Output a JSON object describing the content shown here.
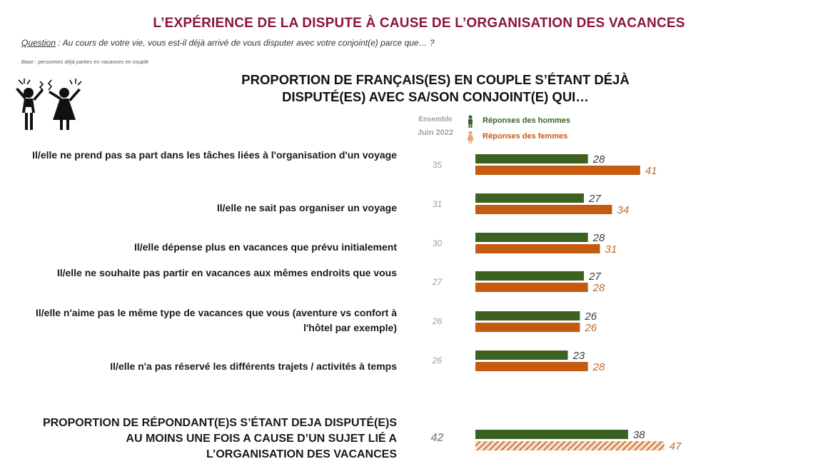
{
  "header": {
    "title": "L’EXPÉRIENCE DE LA DISPUTE À CAUSE DE L’ORGANISATION DES VACANCES",
    "question_label": "Question",
    "question_text": " : Au cours de votre vie, vous est-il déjà arrivé de vous disputer avec votre conjoint(e) parce que… ?",
    "base": "Base : personnes déjà parties en vacances en couple"
  },
  "chart_data": {
    "type": "bar",
    "orientation": "horizontal",
    "title_line1": "PROPORTION DE FRANÇAIS(ES) EN COUPLE S’ÉTANT DÉJÀ",
    "title_line2": "DISPUTÉ(ES) AVEC SA/SON CONJOINT(E) QUI…",
    "ensemble_label": "Ensemble",
    "ensemble_sublabel": "Juin 2022",
    "categories": [
      "Il/elle ne prend pas sa part dans les tâches liées à l'organisation d'un voyage",
      "Il/elle ne sait pas organiser un voyage",
      "Il/elle dépense plus en vacances que prévu initialement",
      "Il/elle ne souhaite pas partir en vacances aux mêmes endroits que vous",
      "Il/elle n'aime pas le même type de vacances que vous (aventure vs confort à l'hôtel par exemple)",
      "Il/elle n'a pas réservé les différents trajets / activités à temps"
    ],
    "ensemble_values": [
      35,
      31,
      30,
      27,
      26,
      26
    ],
    "series": [
      {
        "name": "Réponses des hommes",
        "values": [
          28,
          27,
          28,
          27,
          26,
          23
        ],
        "color": "#3d6121"
      },
      {
        "name": "Réponses des femmes",
        "values": [
          41,
          34,
          31,
          28,
          26,
          28
        ],
        "color": "#c55a11"
      }
    ],
    "summary": {
      "label": "PROPORTION DE RÉPONDANT(E)S S’ÉTANT DEJA DISPUTÉ(E)S AU MOINS UNE FOIS A CAUSE D’UN SUJET LIÉ A L’ORGANISATION DES VACANCES",
      "ensemble": 42,
      "hommes": 38,
      "femmes": 47
    },
    "xlim": [
      0,
      50
    ]
  }
}
